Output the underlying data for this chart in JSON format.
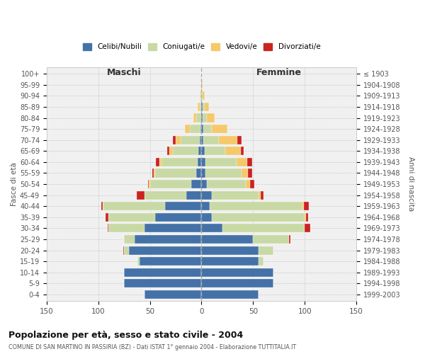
{
  "age_groups": [
    "0-4",
    "5-9",
    "10-14",
    "15-19",
    "20-24",
    "25-29",
    "30-34",
    "35-39",
    "40-44",
    "45-49",
    "50-54",
    "55-59",
    "60-64",
    "65-69",
    "70-74",
    "75-79",
    "80-84",
    "85-89",
    "90-94",
    "95-99",
    "100+"
  ],
  "birth_years": [
    "1999-2003",
    "1994-1998",
    "1989-1993",
    "1984-1988",
    "1979-1983",
    "1974-1978",
    "1969-1973",
    "1964-1968",
    "1959-1963",
    "1954-1958",
    "1949-1953",
    "1944-1948",
    "1939-1943",
    "1934-1938",
    "1929-1933",
    "1924-1928",
    "1919-1923",
    "1914-1918",
    "1909-1913",
    "1904-1908",
    "≤ 1903"
  ],
  "males": {
    "celibi": [
      55,
      75,
      75,
      60,
      70,
      65,
      55,
      45,
      35,
      15,
      10,
      5,
      4,
      3,
      2,
      1,
      0,
      0,
      0,
      0,
      0
    ],
    "coniugati": [
      0,
      0,
      0,
      2,
      5,
      10,
      35,
      45,
      60,
      40,
      40,
      40,
      35,
      25,
      18,
      10,
      5,
      2,
      1,
      0,
      0
    ],
    "vedovi": [
      0,
      0,
      0,
      0,
      0,
      0,
      0,
      0,
      1,
      0,
      1,
      1,
      2,
      3,
      5,
      5,
      3,
      2,
      1,
      0,
      0
    ],
    "divorziati": [
      0,
      0,
      0,
      0,
      1,
      0,
      1,
      3,
      1,
      8,
      1,
      2,
      3,
      2,
      3,
      0,
      0,
      0,
      0,
      0,
      0
    ]
  },
  "females": {
    "nubili": [
      55,
      70,
      70,
      55,
      55,
      50,
      20,
      10,
      8,
      10,
      5,
      4,
      4,
      3,
      2,
      2,
      1,
      1,
      0,
      0,
      0
    ],
    "coniugate": [
      0,
      0,
      0,
      5,
      15,
      35,
      80,
      90,
      90,
      45,
      38,
      35,
      30,
      20,
      15,
      8,
      4,
      2,
      1,
      0,
      0
    ],
    "vedove": [
      0,
      0,
      0,
      0,
      0,
      0,
      0,
      1,
      1,
      2,
      4,
      6,
      10,
      15,
      18,
      15,
      8,
      4,
      2,
      1,
      0
    ],
    "divorziate": [
      0,
      0,
      0,
      0,
      0,
      1,
      5,
      2,
      5,
      3,
      4,
      4,
      5,
      3,
      4,
      0,
      0,
      0,
      0,
      0,
      0
    ]
  },
  "colors": {
    "celibi": "#4472A8",
    "coniugati": "#C8D9A5",
    "vedovi": "#F5C96B",
    "divorziati": "#CC2222"
  },
  "xlim": 150,
  "title": "Popolazione per età, sesso e stato civile - 2004",
  "subtitle": "COMUNE DI SAN MARTINO IN PASSIRIA (BZ) - Dati ISTAT 1° gennaio 2004 - Elaborazione TUTTITALIA.IT",
  "ylabel_left": "Fasce di età",
  "ylabel_right": "Anni di nascita",
  "xlabel_left": "Maschi",
  "xlabel_right": "Femmine",
  "legend_labels": [
    "Celibi/Nubili",
    "Coniugati/e",
    "Vedovi/e",
    "Divorziati/e"
  ],
  "background": "#FFFFFF",
  "plot_bg": "#F0F0F0"
}
